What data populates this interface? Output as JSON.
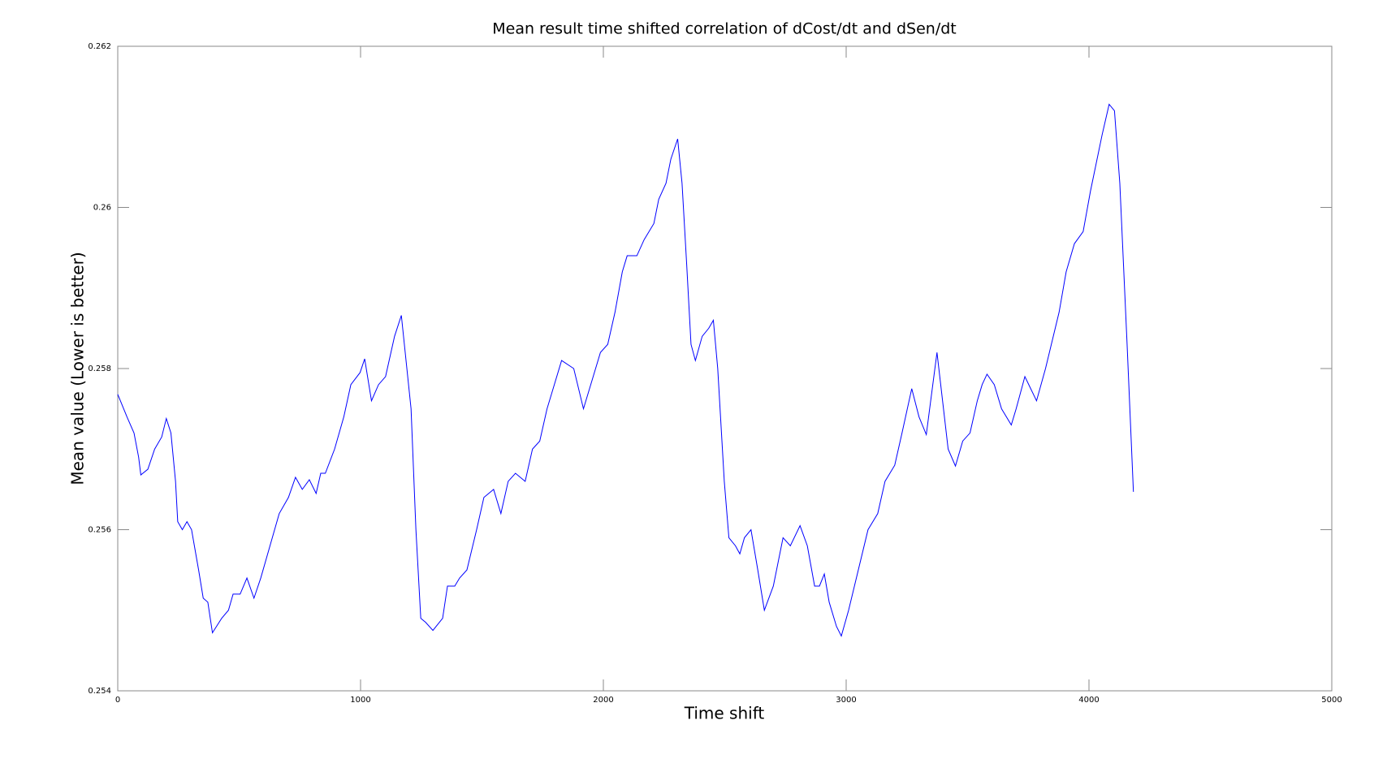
{
  "chart_data": {
    "type": "line",
    "title": "Mean result time shifted correlation of dCost/dt and dSen/dt",
    "xlabel": "Time shift",
    "ylabel": "Mean value (Lower is better)",
    "xlim": [
      0,
      5000
    ],
    "xticks": [
      0,
      1000,
      2000,
      3000,
      4000,
      5000
    ],
    "ylim": [
      0.254,
      0.262
    ],
    "yticks": [
      0.254,
      0.256,
      0.258,
      0.26,
      0.262
    ],
    "grid": false,
    "series": [
      {
        "name": "mean",
        "color": "#0000ff",
        "x": [
          0,
          38,
          67,
          86,
          95,
          124,
          152,
          181,
          200,
          219,
          238,
          247,
          266,
          285,
          304,
          333,
          352,
          371,
          390,
          428,
          456,
          475,
          504,
          532,
          561,
          589,
          627,
          665,
          703,
          732,
          760,
          789,
          817,
          836,
          855,
          893,
          931,
          960,
          998,
          1017,
          1045,
          1074,
          1103,
          1140,
          1168,
          1208,
          1228,
          1248,
          1268,
          1298,
          1338,
          1358,
          1388,
          1408,
          1438,
          1478,
          1508,
          1548,
          1578,
          1608,
          1638,
          1678,
          1708,
          1738,
          1768,
          1798,
          1828,
          1878,
          1918,
          1948,
          1988,
          2018,
          2048,
          2078,
          2098,
          2138,
          2168,
          2208,
          2228,
          2258,
          2278,
          2306,
          2324,
          2343,
          2361,
          2379,
          2407,
          2434,
          2453,
          2471,
          2498,
          2517,
          2544,
          2562,
          2581,
          2608,
          2636,
          2663,
          2700,
          2740,
          2770,
          2810,
          2840,
          2870,
          2890,
          2910,
          2930,
          2960,
          2980,
          3010,
          3050,
          3090,
          3130,
          3160,
          3200,
          3230,
          3270,
          3300,
          3330,
          3374,
          3420,
          3450,
          3480,
          3510,
          3540,
          3560,
          3580,
          3610,
          3640,
          3680,
          3700,
          3736,
          3784,
          3821,
          3877,
          3906,
          3940,
          3976,
          4006,
          4054,
          4083,
          4105,
          4127,
          4157,
          4183
        ],
        "values": [
          0.25768,
          0.2574,
          0.2572,
          0.2569,
          0.25668,
          0.25675,
          0.257,
          0.25715,
          0.25738,
          0.2572,
          0.2566,
          0.2561,
          0.256,
          0.2561,
          0.256,
          0.2555,
          0.25515,
          0.2551,
          0.25472,
          0.2549,
          0.255,
          0.2552,
          0.2552,
          0.2554,
          0.25515,
          0.2554,
          0.2558,
          0.2562,
          0.2564,
          0.25665,
          0.2565,
          0.25662,
          0.25645,
          0.2567,
          0.2567,
          0.257,
          0.2574,
          0.2578,
          0.25795,
          0.25812,
          0.2576,
          0.2578,
          0.2579,
          0.2584,
          0.25866,
          0.2575,
          0.256,
          0.2549,
          0.25485,
          0.25475,
          0.2549,
          0.2553,
          0.2553,
          0.2554,
          0.2555,
          0.256,
          0.2564,
          0.2565,
          0.2562,
          0.2566,
          0.2567,
          0.2566,
          0.257,
          0.2571,
          0.2575,
          0.2578,
          0.2581,
          0.258,
          0.2575,
          0.2578,
          0.2582,
          0.2583,
          0.2587,
          0.2592,
          0.2594,
          0.2594,
          0.2596,
          0.2598,
          0.2601,
          0.2603,
          0.2606,
          0.26085,
          0.2603,
          0.2593,
          0.2583,
          0.2581,
          0.2584,
          0.2585,
          0.2586,
          0.258,
          0.2566,
          0.2559,
          0.2558,
          0.2557,
          0.2559,
          0.256,
          0.2555,
          0.255,
          0.2553,
          0.2559,
          0.2558,
          0.25605,
          0.2558,
          0.2553,
          0.2553,
          0.25545,
          0.2551,
          0.2548,
          0.25468,
          0.255,
          0.2555,
          0.256,
          0.2562,
          0.2566,
          0.2568,
          0.2572,
          0.25775,
          0.2574,
          0.25718,
          0.2582,
          0.257,
          0.25679,
          0.2571,
          0.2572,
          0.2576,
          0.2578,
          0.25793,
          0.2578,
          0.2575,
          0.2573,
          0.2575,
          0.2579,
          0.2576,
          0.258,
          0.2587,
          0.2592,
          0.25955,
          0.2597,
          0.2602,
          0.2609,
          0.26128,
          0.2612,
          0.2603,
          0.2583,
          0.25647
        ]
      }
    ]
  }
}
